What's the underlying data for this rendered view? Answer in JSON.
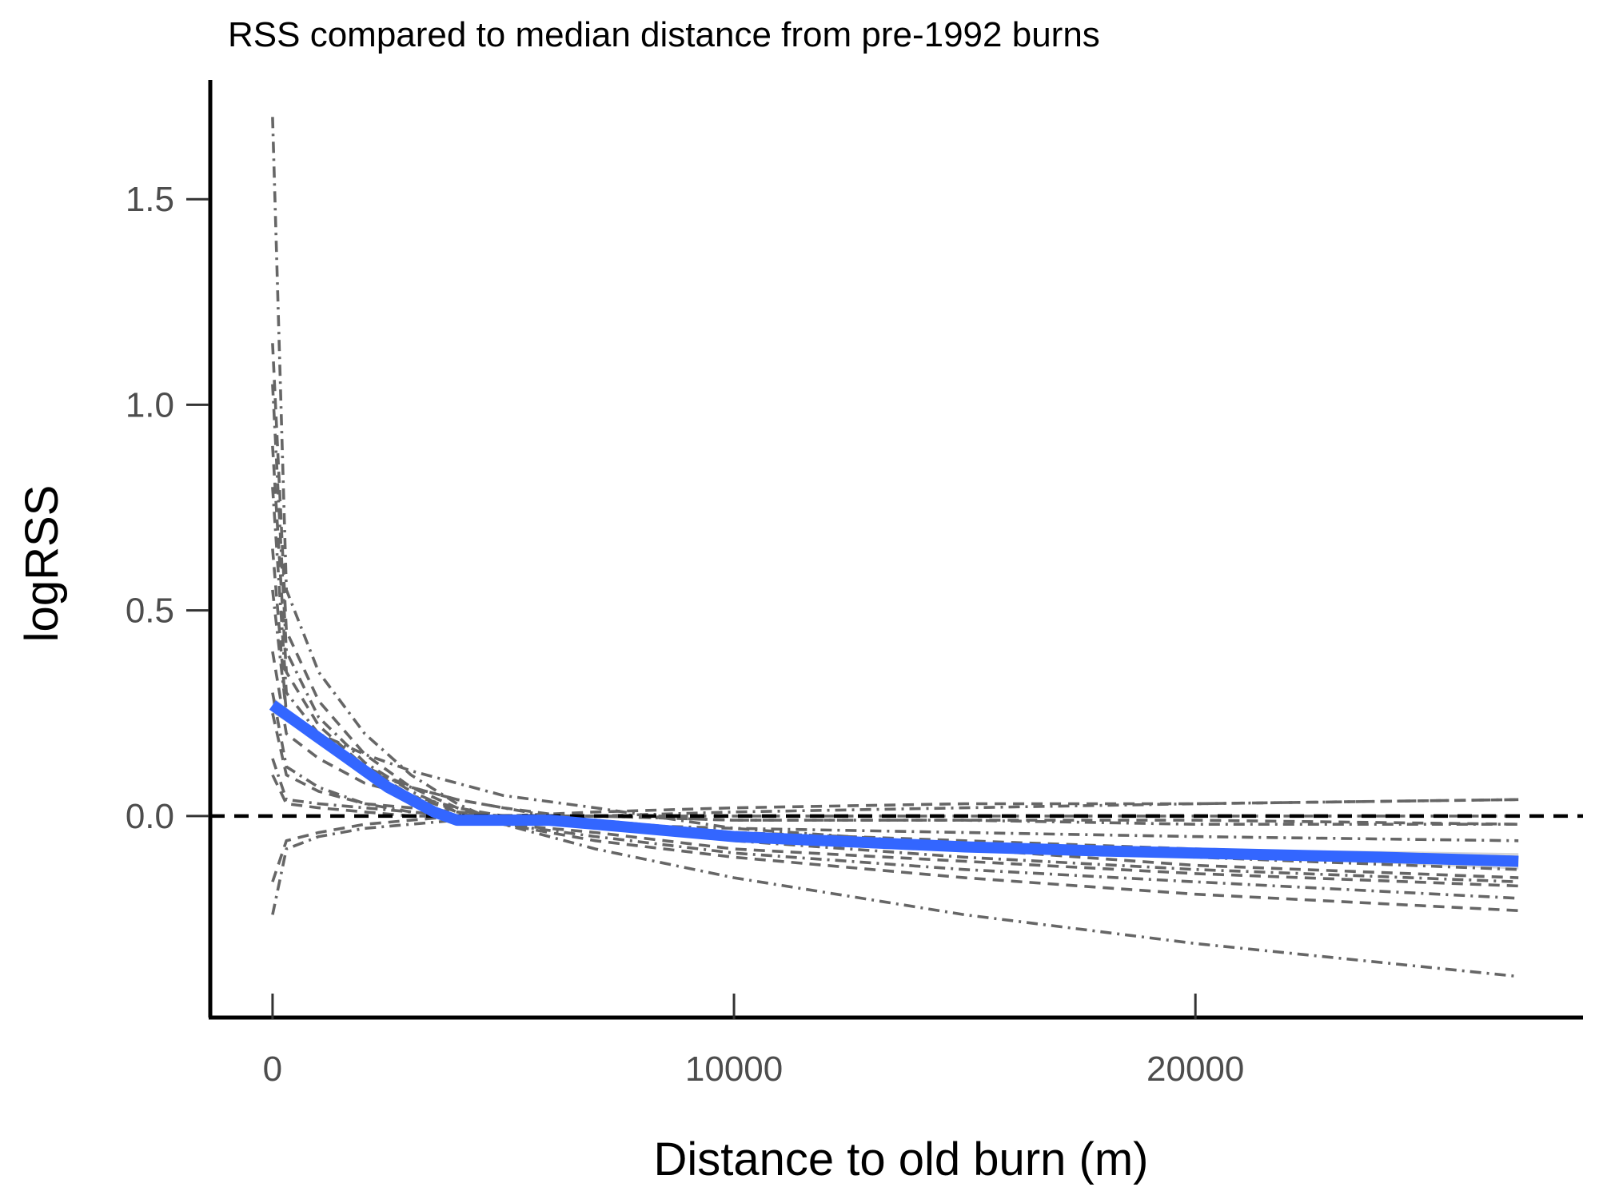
{
  "chart_data": {
    "type": "line",
    "title": "RSS compared to median distance from pre-1992 burns",
    "xlabel": "Distance to old burn (m)",
    "ylabel": "logRSS",
    "xlim": [
      -1350,
      28400
    ],
    "ylim": [
      -0.49,
      1.79
    ],
    "x_ticks": [
      0,
      10000,
      20000
    ],
    "x_tick_labels": [
      "0",
      "10000",
      "20000"
    ],
    "y_ticks": [
      0.0,
      0.5,
      1.0,
      1.5
    ],
    "y_tick_labels": [
      "0.0",
      "0.5",
      "1.0",
      "1.5"
    ],
    "grid": false,
    "legend": "none",
    "reference_line": {
      "y": 0,
      "style": "dashed",
      "color": "#000000"
    },
    "colors": {
      "individual_lines": "#666666",
      "mean_line": "#3366ff",
      "ribbon": "#cccccc",
      "reference": "#000000",
      "axis": "#000000",
      "tick_label": "#4d4d4d"
    },
    "x": [
      0,
      300,
      1000,
      2000,
      3000,
      4000,
      5000,
      7000,
      10000,
      15000,
      20000,
      27000
    ],
    "series": [
      {
        "style": "dashdot",
        "values": [
          1.7,
          0.55,
          0.35,
          0.2,
          0.1,
          0.03,
          -0.02,
          -0.08,
          -0.15,
          -0.24,
          -0.31,
          -0.39
        ]
      },
      {
        "style": "dashed",
        "values": [
          1.15,
          0.45,
          0.28,
          0.15,
          0.07,
          0.02,
          -0.02,
          -0.06,
          -0.1,
          -0.15,
          -0.19,
          -0.23
        ]
      },
      {
        "style": "dashdot",
        "values": [
          1.05,
          0.4,
          0.24,
          0.13,
          0.06,
          0.01,
          -0.02,
          -0.05,
          -0.09,
          -0.13,
          -0.16,
          -0.2
        ]
      },
      {
        "style": "dashed",
        "values": [
          0.9,
          0.35,
          0.22,
          0.12,
          0.05,
          0.01,
          -0.02,
          -0.04,
          -0.08,
          -0.11,
          -0.14,
          -0.17
        ]
      },
      {
        "style": "dashdot",
        "values": [
          0.8,
          0.3,
          0.2,
          0.12,
          0.07,
          0.04,
          0.02,
          -0.02,
          -0.06,
          -0.1,
          -0.13,
          -0.16
        ]
      },
      {
        "style": "dashed",
        "values": [
          0.65,
          0.25,
          0.18,
          0.11,
          0.07,
          0.04,
          0.02,
          -0.01,
          -0.04,
          -0.08,
          -0.12,
          -0.15
        ]
      },
      {
        "style": "dashdot",
        "values": [
          0.55,
          0.25,
          0.2,
          0.15,
          0.11,
          0.08,
          0.05,
          0.02,
          -0.03,
          -0.07,
          -0.1,
          -0.13
        ]
      },
      {
        "style": "dashed",
        "values": [
          0.4,
          0.2,
          0.14,
          0.08,
          0.05,
          0.02,
          0.0,
          -0.02,
          -0.04,
          -0.06,
          -0.08,
          -0.1
        ]
      },
      {
        "style": "dashdot",
        "values": [
          0.3,
          0.12,
          0.07,
          0.03,
          0.01,
          0.0,
          -0.01,
          -0.02,
          -0.03,
          -0.04,
          -0.05,
          -0.06
        ]
      },
      {
        "style": "dashed",
        "values": [
          0.25,
          0.1,
          0.06,
          0.03,
          0.02,
          0.01,
          0.0,
          0.0,
          -0.01,
          -0.01,
          -0.01,
          -0.02
        ]
      },
      {
        "style": "dashdot",
        "values": [
          0.14,
          0.04,
          0.03,
          0.02,
          0.01,
          0.0,
          0.0,
          0.0,
          -0.01,
          -0.01,
          -0.02,
          -0.02
        ]
      },
      {
        "style": "dashed",
        "values": [
          0.1,
          0.03,
          0.02,
          0.01,
          0.0,
          0.0,
          0.0,
          0.0,
          0.0,
          0.0,
          0.0,
          0.0
        ]
      },
      {
        "style": "dashdot",
        "values": [
          -0.24,
          -0.08,
          -0.05,
          -0.03,
          -0.02,
          -0.01,
          0.0,
          0.0,
          0.01,
          0.02,
          0.03,
          0.04
        ]
      },
      {
        "style": "dashed",
        "values": [
          -0.16,
          -0.06,
          -0.04,
          -0.02,
          -0.01,
          0.0,
          0.0,
          0.01,
          0.02,
          0.03,
          0.03,
          0.04
        ]
      }
    ],
    "mean_curve": {
      "style": "solid",
      "x": [
        0,
        500,
        1000,
        1500,
        2000,
        2500,
        3000,
        3500,
        4000,
        5000,
        6000,
        7000,
        8000,
        10000,
        12000,
        15000,
        18000,
        20000,
        24000,
        27000
      ],
      "values": [
        0.27,
        0.23,
        0.19,
        0.15,
        0.11,
        0.07,
        0.04,
        0.01,
        -0.01,
        -0.01,
        -0.01,
        -0.02,
        -0.03,
        -0.05,
        -0.06,
        -0.075,
        -0.085,
        -0.09,
        -0.1,
        -0.11
      ],
      "ribbon_lower": [
        0.25,
        0.215,
        0.18,
        0.14,
        0.1,
        0.06,
        0.03,
        0.0,
        -0.02,
        -0.02,
        -0.02,
        -0.03,
        -0.04,
        -0.06,
        -0.07,
        -0.085,
        -0.095,
        -0.1,
        -0.115,
        -0.13
      ],
      "ribbon_upper": [
        0.29,
        0.245,
        0.2,
        0.16,
        0.12,
        0.08,
        0.05,
        0.02,
        0.0,
        0.0,
        0.0,
        -0.01,
        -0.02,
        -0.04,
        -0.05,
        -0.065,
        -0.075,
        -0.08,
        -0.085,
        -0.09
      ]
    }
  }
}
